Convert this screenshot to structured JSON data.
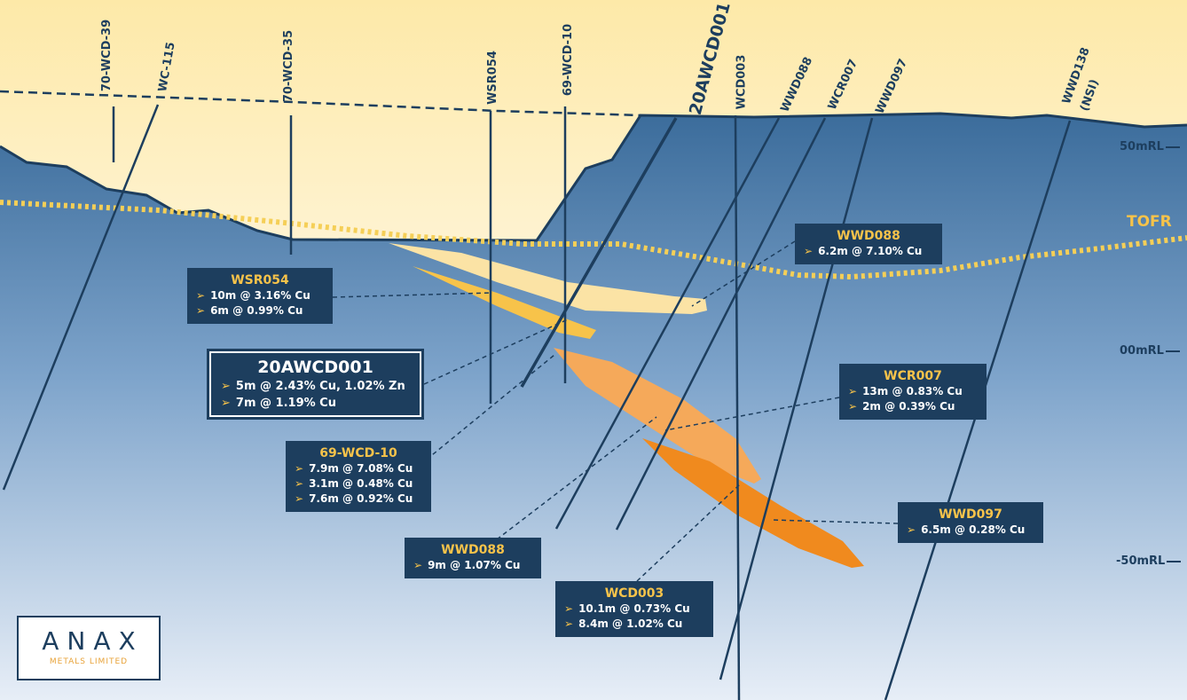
{
  "hole_labels": {
    "h70wcd39": "70-WCD-39",
    "hwc115": "WC-115",
    "h70wcd35": "70-WCD-35",
    "hwsr054": "WSR054",
    "h69wcd10": "69-WCD-10",
    "h20awcd001": "20AWCD001",
    "hwcd003": "WCD003",
    "hwwd088": "WWD088",
    "hwcr007": "WCR007",
    "hwwd097": "WWD097",
    "hwwd138": "WWD138",
    "hnsi": "(NSI)"
  },
  "levels": {
    "l50": "50mRL",
    "l00": "00mRL",
    "lm50": "-50mRL"
  },
  "tofr": "TOFR",
  "annotations": {
    "wsr054": {
      "title": "WSR054",
      "rows": [
        "10m @ 3.16% Cu",
        "6m @ 0.99% Cu"
      ]
    },
    "awcd001": {
      "title": "20AWCD001",
      "rows": [
        "5m @ 2.43% Cu, 1.02% Zn",
        "7m @ 1.19% Cu"
      ]
    },
    "wcd10": {
      "title": "69-WCD-10",
      "rows": [
        "7.9m @ 7.08% Cu",
        "3.1m @ 0.48% Cu",
        "7.6m @ 0.92% Cu"
      ]
    },
    "wwd088a": {
      "title": "WWD088",
      "rows": [
        "6.2m @ 7.10% Cu"
      ]
    },
    "wwd088b": {
      "title": "WWD088",
      "rows": [
        "9m @ 1.07% Cu"
      ]
    },
    "wcr007": {
      "title": "WCR007",
      "rows": [
        "13m @ 0.83% Cu",
        "2m @ 0.39% Cu"
      ]
    },
    "wwd097": {
      "title": "WWD097",
      "rows": [
        "6.5m @ 0.28% Cu"
      ]
    },
    "wcd003": {
      "title": "WCD003",
      "rows": [
        "10.1m @ 0.73% Cu",
        "8.4m @ 1.02% Cu"
      ]
    }
  },
  "bullet": "➢",
  "logo": {
    "word": "ANAX",
    "sub": "METALS LIMITED"
  },
  "colors": {
    "navy": "#1d3e5e",
    "gold": "#f7c34a",
    "orange": "#f08a1e",
    "cream": "#fdf6e3"
  }
}
